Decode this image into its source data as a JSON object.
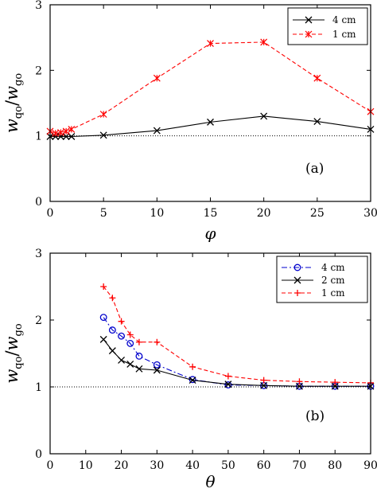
{
  "chart_data": [
    {
      "type": "line",
      "panel_label": "(a)",
      "xlabel": "φ",
      "ylabel": {
        "main": "w",
        "sub1": "qo",
        "sep": "/",
        "main2": "w",
        "sub2": "go"
      },
      "xlim": [
        0,
        30
      ],
      "ylim": [
        0,
        3
      ],
      "xticks": [
        0,
        5,
        10,
        15,
        20,
        25,
        30
      ],
      "yticks": [
        0,
        1,
        2,
        3
      ],
      "reference_line": 1,
      "legend_position": "top-right",
      "series": [
        {
          "name": "4 cm",
          "color": "#000000",
          "marker": "x",
          "line": "solid",
          "x": [
            0,
            0.5,
            1,
            1.5,
            2,
            5,
            10,
            15,
            20,
            25,
            30
          ],
          "y": [
            0.99,
            0.99,
            0.99,
            0.99,
            0.99,
            1.01,
            1.08,
            1.21,
            1.3,
            1.22,
            1.1
          ]
        },
        {
          "name": "1 cm",
          "color": "#ff0000",
          "marker": "asterisk",
          "line": "dashed",
          "x": [
            0,
            0.5,
            1,
            1.5,
            2,
            5,
            10,
            15,
            20,
            25,
            30
          ],
          "y": [
            1.07,
            1.04,
            1.05,
            1.07,
            1.1,
            1.33,
            1.88,
            2.41,
            2.43,
            1.88,
            1.37
          ]
        }
      ]
    },
    {
      "type": "line",
      "panel_label": "(b)",
      "xlabel": "θ",
      "ylabel": {
        "main": "w",
        "sub1": "qo",
        "sep": "/",
        "main2": "w",
        "sub2": "go"
      },
      "xlim": [
        0,
        90
      ],
      "ylim": [
        0,
        3
      ],
      "xticks": [
        0,
        10,
        20,
        30,
        40,
        50,
        60,
        70,
        80,
        90
      ],
      "yticks": [
        0,
        1,
        2,
        3
      ],
      "reference_line": 1,
      "legend_position": "top-right",
      "series": [
        {
          "name": "4 cm",
          "color": "#0000cc",
          "marker": "circle",
          "line": "dashdot",
          "x": [
            15,
            17.5,
            20,
            22.5,
            25,
            30,
            40,
            50,
            60,
            70,
            80,
            90
          ],
          "y": [
            2.04,
            1.85,
            1.76,
            1.65,
            1.46,
            1.33,
            1.11,
            1.03,
            1.02,
            1.01,
            1.01,
            1.01
          ]
        },
        {
          "name": "2 cm",
          "color": "#000000",
          "marker": "x",
          "line": "solid",
          "x": [
            15,
            17.5,
            20,
            22.5,
            25,
            30,
            40,
            50,
            60,
            70,
            80,
            90
          ],
          "y": [
            1.71,
            1.54,
            1.4,
            1.34,
            1.27,
            1.25,
            1.1,
            1.04,
            1.02,
            1.01,
            1.01,
            1.01
          ]
        },
        {
          "name": "1 cm",
          "color": "#ff0000",
          "marker": "plus",
          "line": "dashed",
          "x": [
            15,
            17.5,
            20,
            22.5,
            25,
            30,
            40,
            50,
            60,
            70,
            80,
            90
          ],
          "y": [
            2.5,
            2.33,
            1.98,
            1.78,
            1.67,
            1.67,
            1.3,
            1.16,
            1.1,
            1.08,
            1.07,
            1.06
          ]
        }
      ]
    }
  ]
}
